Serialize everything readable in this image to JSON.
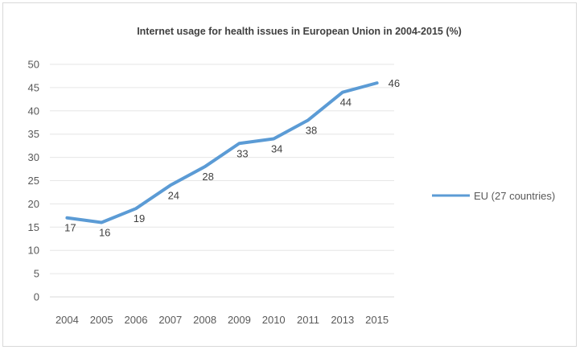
{
  "chart_data": {
    "type": "line",
    "title": "Internet usage for health issues in European Union in 2004-2015 (%)",
    "xlabel": "",
    "ylabel": "",
    "categories": [
      "2004",
      "2005",
      "2006",
      "2007",
      "2008",
      "2009",
      "2010",
      "2011",
      "2013",
      "2015"
    ],
    "series": [
      {
        "name": "EU (27 countries)",
        "values": [
          17,
          16,
          19,
          24,
          28,
          33,
          34,
          38,
          44,
          46
        ],
        "color": "#5b9bd5"
      }
    ],
    "ylim": [
      0,
      50
    ],
    "yticks": [
      0,
      5,
      10,
      15,
      20,
      25,
      30,
      35,
      40,
      45,
      50
    ],
    "grid": true,
    "data_labels": true,
    "legend_position": "right"
  }
}
